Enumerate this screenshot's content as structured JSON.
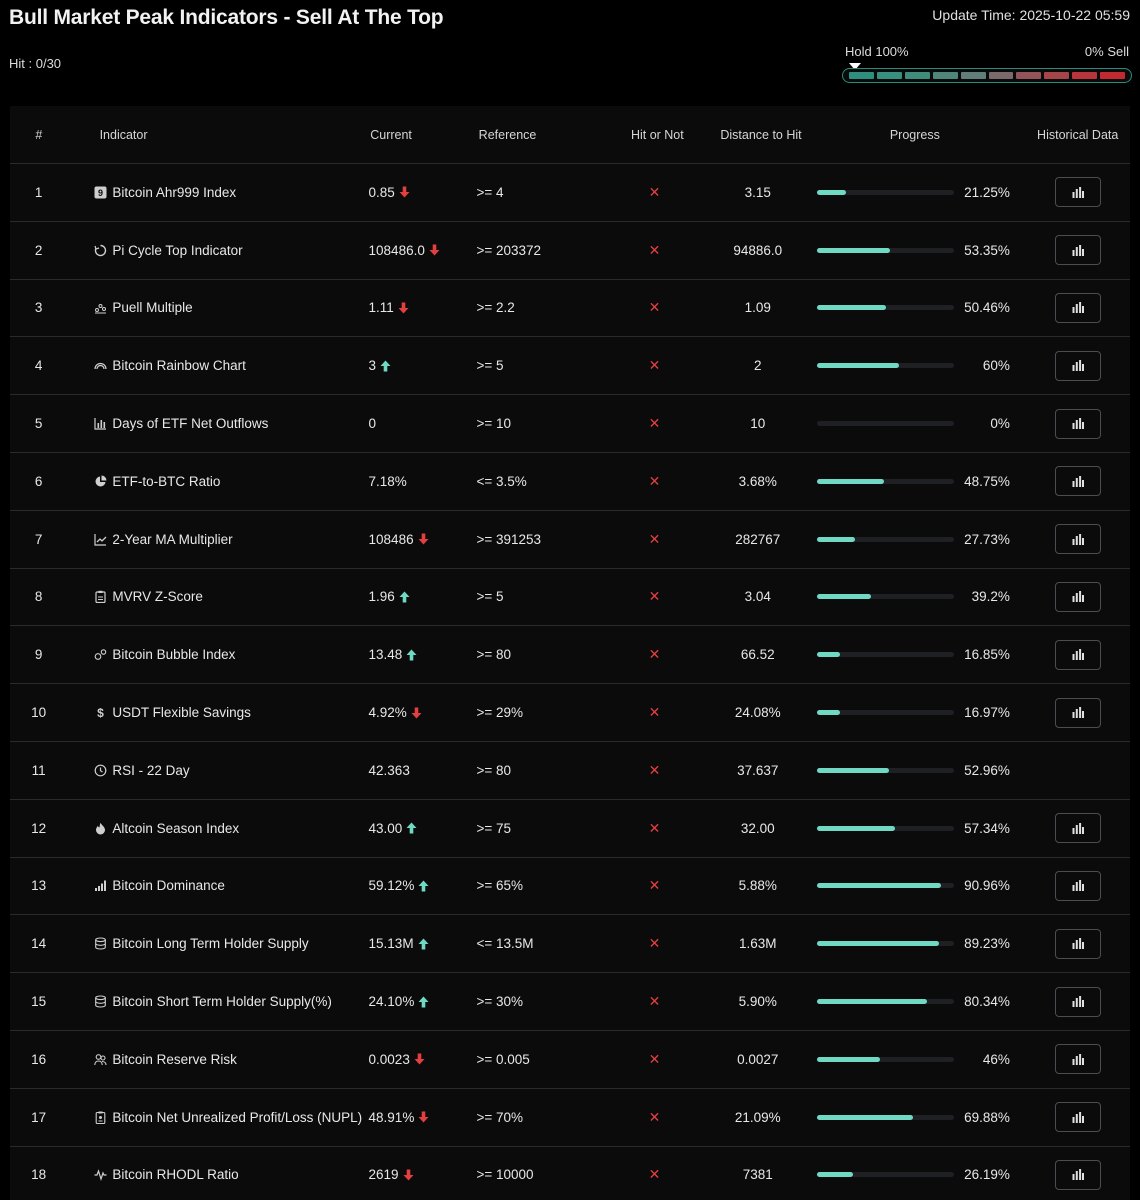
{
  "title": "Bull Market Peak Indicators - Sell At The Top",
  "update_time": "Update Time: 2025-10-22 05:59",
  "hit_count": "Hit : 0/30",
  "gauge": {
    "left_label": "Hold 100%",
    "right_label": "0% Sell",
    "level": 0,
    "segment_colors": [
      "#2e8f7f",
      "#37907f",
      "#3f8b7c",
      "#4f857a",
      "#627e7a",
      "#7b6a6c",
      "#925459",
      "#a64549",
      "#b8353b",
      "#c22a31"
    ]
  },
  "colors": {
    "up": "#6fd9c4",
    "down": "#e0403f",
    "progress": "#6fd9c4"
  },
  "headers": {
    "num": "#",
    "indicator": "Indicator",
    "current": "Current",
    "reference": "Reference",
    "hit": "Hit or Not",
    "distance": "Distance to Hit",
    "progress": "Progress",
    "historical": "Historical Data"
  },
  "rows": [
    {
      "num": "1",
      "icon": "nine-badge-icon",
      "name": "Bitcoin Ahr999 Index",
      "current": "0.85",
      "trend": "down",
      "reference": ">= 4",
      "hit": "✕",
      "distance": "3.15",
      "progress": 21.25,
      "progress_label": "21.25%",
      "has_history": true
    },
    {
      "num": "2",
      "icon": "cycle-icon",
      "name": "Pi Cycle Top Indicator",
      "current": "108486.0",
      "trend": "down",
      "reference": ">= 203372",
      "hit": "✕",
      "distance": "94886.0",
      "progress": 53.35,
      "progress_label": "53.35%",
      "has_history": true
    },
    {
      "num": "3",
      "icon": "scatter-icon",
      "name": "Puell Multiple",
      "current": "1.11",
      "trend": "down",
      "reference": ">= 2.2",
      "hit": "✕",
      "distance": "1.09",
      "progress": 50.46,
      "progress_label": "50.46%",
      "has_history": true
    },
    {
      "num": "4",
      "icon": "rainbow-icon",
      "name": "Bitcoin Rainbow Chart",
      "current": "3",
      "trend": "up",
      "reference": ">= 5",
      "hit": "✕",
      "distance": "2",
      "progress": 60,
      "progress_label": "60%",
      "has_history": true
    },
    {
      "num": "5",
      "icon": "bar-chart-icon",
      "name": "Days of ETF Net Outflows",
      "current": "0",
      "trend": "none",
      "reference": ">= 10",
      "hit": "✕",
      "distance": "10",
      "progress": 0,
      "progress_label": "0%",
      "has_history": true
    },
    {
      "num": "6",
      "icon": "pie-chart-icon",
      "name": "ETF-to-BTC Ratio",
      "current": "7.18%",
      "trend": "none",
      "reference": "<= 3.5%",
      "hit": "✕",
      "distance": "3.68%",
      "progress": 48.75,
      "progress_label": "48.75%",
      "has_history": true
    },
    {
      "num": "7",
      "icon": "line-chart-icon",
      "name": "2-Year MA Multiplier",
      "current": "108486",
      "trend": "down",
      "reference": ">= 391253",
      "hit": "✕",
      "distance": "282767",
      "progress": 27.73,
      "progress_label": "27.73%",
      "has_history": true
    },
    {
      "num": "8",
      "icon": "clipboard-icon",
      "name": "MVRV Z-Score",
      "current": "1.96",
      "trend": "up",
      "reference": ">= 5",
      "hit": "✕",
      "distance": "3.04",
      "progress": 39.2,
      "progress_label": "39.2%",
      "has_history": true
    },
    {
      "num": "9",
      "icon": "bubbles-icon",
      "name": "Bitcoin Bubble Index",
      "current": "13.48",
      "trend": "up",
      "reference": ">= 80",
      "hit": "✕",
      "distance": "66.52",
      "progress": 16.85,
      "progress_label": "16.85%",
      "has_history": true
    },
    {
      "num": "10",
      "icon": "dollar-icon",
      "name": "USDT Flexible Savings",
      "current": "4.92%",
      "trend": "down",
      "reference": ">= 29%",
      "hit": "✕",
      "distance": "24.08%",
      "progress": 16.97,
      "progress_label": "16.97%",
      "has_history": true
    },
    {
      "num": "11",
      "icon": "clock-icon",
      "name": "RSI - 22 Day",
      "current": "42.363",
      "trend": "none",
      "reference": ">= 80",
      "hit": "✕",
      "distance": "37.637",
      "progress": 52.96,
      "progress_label": "52.96%",
      "has_history": false
    },
    {
      "num": "12",
      "icon": "flame-icon",
      "name": "Altcoin Season Index",
      "current": "43.00",
      "trend": "up",
      "reference": ">= 75",
      "hit": "✕",
      "distance": "32.00",
      "progress": 57.34,
      "progress_label": "57.34%",
      "has_history": true
    },
    {
      "num": "13",
      "icon": "signal-bars-icon",
      "name": "Bitcoin Dominance",
      "current": "59.12%",
      "trend": "up",
      "reference": ">= 65%",
      "hit": "✕",
      "distance": "5.88%",
      "progress": 90.96,
      "progress_label": "90.96%",
      "has_history": true
    },
    {
      "num": "14",
      "icon": "database-icon",
      "name": "Bitcoin Long Term Holder Supply",
      "current": "15.13M",
      "trend": "up",
      "reference": "<= 13.5M",
      "hit": "✕",
      "distance": "1.63M",
      "progress": 89.23,
      "progress_label": "89.23%",
      "has_history": true
    },
    {
      "num": "15",
      "icon": "database-icon",
      "name": "Bitcoin Short Term Holder Supply(%)",
      "current": "24.10%",
      "trend": "up",
      "reference": ">= 30%",
      "hit": "✕",
      "distance": "5.90%",
      "progress": 80.34,
      "progress_label": "80.34%",
      "has_history": true
    },
    {
      "num": "16",
      "icon": "users-icon",
      "name": "Bitcoin Reserve Risk",
      "current": "0.0023",
      "trend": "down",
      "reference": ">= 0.005",
      "hit": "✕",
      "distance": "0.0027",
      "progress": 46,
      "progress_label": "46%",
      "has_history": true
    },
    {
      "num": "17",
      "icon": "document-icon",
      "name": "Bitcoin Net Unrealized Profit/Loss (NUPL)",
      "current": "48.91%",
      "trend": "down",
      "reference": ">= 70%",
      "hit": "✕",
      "distance": "21.09%",
      "progress": 69.88,
      "progress_label": "69.88%",
      "has_history": true
    },
    {
      "num": "18",
      "icon": "pulse-icon",
      "name": "Bitcoin RHODL Ratio",
      "current": "2619",
      "trend": "down",
      "reference": ">= 10000",
      "hit": "✕",
      "distance": "7381",
      "progress": 26.19,
      "progress_label": "26.19%",
      "has_history": true
    }
  ]
}
